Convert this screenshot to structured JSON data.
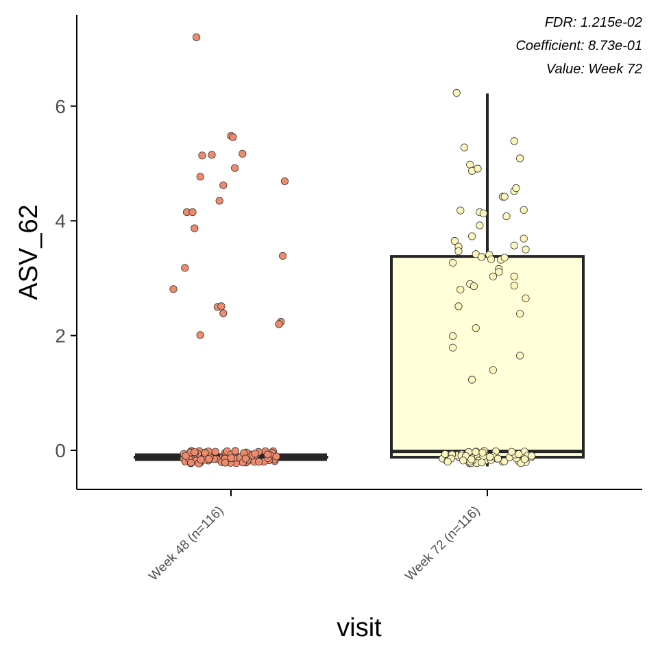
{
  "chart_data": {
    "type": "box",
    "xlabel": "visit",
    "ylabel": "ASV_62",
    "categories": [
      "Week 48 (n=116)",
      "Week 72 (n=116)"
    ],
    "ylim": [
      -0.7,
      7.6
    ],
    "yticks": [
      0,
      2,
      4,
      6
    ],
    "annotations": [
      "FDR: 1.215e-02",
      "Coefficient: 8.73e-01",
      "Value: Week 72"
    ],
    "groups": [
      {
        "category": "Week 48 (n=116)",
        "fill": "#fcf8d4",
        "point_color": "#f08a6c",
        "box": {
          "q1": -0.12,
          "median": -0.12,
          "q3": -0.12,
          "whisker_low": -0.12,
          "whisker_high": -0.12
        },
        "n_near_zero": 96,
        "points": [
          {
            "x": -0.18,
            "y": 7.2
          },
          {
            "x": 0.0,
            "y": 5.48
          },
          {
            "x": 0.01,
            "y": 5.46
          },
          {
            "x": -0.15,
            "y": 5.14
          },
          {
            "x": -0.1,
            "y": 5.15
          },
          {
            "x": 0.06,
            "y": 5.17
          },
          {
            "x": 0.02,
            "y": 4.92
          },
          {
            "x": -0.16,
            "y": 4.77
          },
          {
            "x": 0.28,
            "y": 4.69
          },
          {
            "x": -0.04,
            "y": 4.62
          },
          {
            "x": -0.06,
            "y": 4.35
          },
          {
            "x": -0.23,
            "y": 4.15
          },
          {
            "x": -0.2,
            "y": 4.15
          },
          {
            "x": -0.19,
            "y": 3.87
          },
          {
            "x": 0.27,
            "y": 3.39
          },
          {
            "x": -0.24,
            "y": 3.18
          },
          {
            "x": -0.3,
            "y": 2.81
          },
          {
            "x": -0.07,
            "y": 2.5
          },
          {
            "x": -0.05,
            "y": 2.51
          },
          {
            "x": -0.04,
            "y": 2.39
          },
          {
            "x": 0.26,
            "y": 2.24
          },
          {
            "x": 0.25,
            "y": 2.2
          },
          {
            "x": -0.16,
            "y": 2.01
          }
        ]
      },
      {
        "category": "Week 72 (n=116)",
        "fill": "#ffffd9",
        "point_color": "#fcf6bc",
        "box": {
          "q1": -0.12,
          "median": -0.02,
          "q3": 3.38,
          "whisker_low": -0.28,
          "whisker_high": 6.22
        },
        "n_near_zero": 56,
        "points": [
          {
            "x": -0.16,
            "y": 6.23
          },
          {
            "x": 0.14,
            "y": 5.39
          },
          {
            "x": -0.12,
            "y": 5.28
          },
          {
            "x": -0.09,
            "y": 4.98
          },
          {
            "x": -0.08,
            "y": 4.87
          },
          {
            "x": -0.05,
            "y": 4.91
          },
          {
            "x": 0.17,
            "y": 5.09
          },
          {
            "x": 0.14,
            "y": 4.52
          },
          {
            "x": 0.15,
            "y": 4.57
          },
          {
            "x": 0.08,
            "y": 4.42
          },
          {
            "x": 0.09,
            "y": 4.42
          },
          {
            "x": 0.19,
            "y": 4.19
          },
          {
            "x": -0.14,
            "y": 4.18
          },
          {
            "x": -0.04,
            "y": 4.15
          },
          {
            "x": -0.02,
            "y": 4.13
          },
          {
            "x": 0.1,
            "y": 4.08
          },
          {
            "x": -0.04,
            "y": 3.92
          },
          {
            "x": -0.08,
            "y": 3.73
          },
          {
            "x": -0.17,
            "y": 3.65
          },
          {
            "x": 0.19,
            "y": 3.69
          },
          {
            "x": -0.15,
            "y": 3.55
          },
          {
            "x": 0.14,
            "y": 3.57
          },
          {
            "x": 0.2,
            "y": 3.5
          },
          {
            "x": -0.15,
            "y": 3.47
          },
          {
            "x": -0.06,
            "y": 3.42
          },
          {
            "x": -0.03,
            "y": 3.37
          },
          {
            "x": 0.01,
            "y": 3.41
          },
          {
            "x": 0.07,
            "y": 3.32
          },
          {
            "x": -0.18,
            "y": 3.27
          },
          {
            "x": 0.02,
            "y": 3.33
          },
          {
            "x": 0.09,
            "y": 3.36
          },
          {
            "x": 0.06,
            "y": 3.16
          },
          {
            "x": 0.06,
            "y": 3.11
          },
          {
            "x": 0.14,
            "y": 3.03
          },
          {
            "x": 0.03,
            "y": 3.03
          },
          {
            "x": -0.09,
            "y": 2.9
          },
          {
            "x": -0.07,
            "y": 2.86
          },
          {
            "x": 0.14,
            "y": 2.87
          },
          {
            "x": -0.14,
            "y": 2.8
          },
          {
            "x": 0.2,
            "y": 2.65
          },
          {
            "x": -0.15,
            "y": 2.51
          },
          {
            "x": 0.17,
            "y": 2.38
          },
          {
            "x": -0.06,
            "y": 2.13
          },
          {
            "x": -0.18,
            "y": 1.99
          },
          {
            "x": -0.18,
            "y": 1.79
          },
          {
            "x": 0.17,
            "y": 1.65
          },
          {
            "x": 0.03,
            "y": 1.4
          },
          {
            "x": -0.08,
            "y": 1.23
          }
        ]
      }
    ]
  }
}
